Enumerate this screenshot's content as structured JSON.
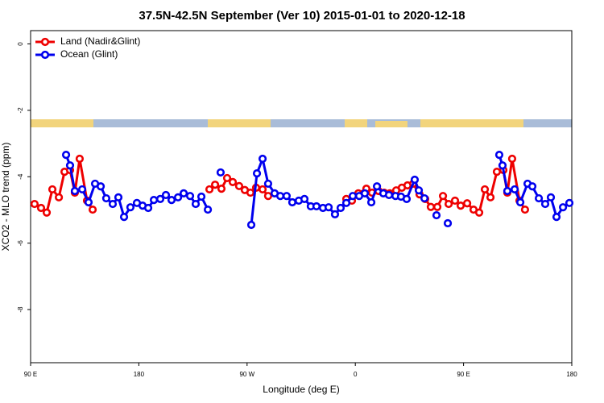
{
  "chart_data": {
    "type": "line",
    "title": "37.5N-42.5N September (Ver 10)   2015-01-01 to 2020-12-18",
    "xlabel": "Longitude (deg E)",
    "ylabel": "XCO2 - MLO trend (ppm)",
    "xlim": [
      90,
      540
    ],
    "ylim": [
      -9.6,
      0.4
    ],
    "xticks": [
      {
        "value": 90,
        "label": "90 E"
      },
      180,
      {
        "value": 270,
        "label": "90 W"
      },
      {
        "value": 360,
        "label": "0"
      },
      {
        "value": 450,
        "label": "90 E"
      },
      {
        "value": 540,
        "label": "180"
      }
    ],
    "yticks": [
      0,
      -2,
      -4,
      -6,
      -8
    ],
    "legend": "top-left",
    "series": [
      {
        "name": "Land (Nadir&Glint)",
        "color": "#ee0000",
        "x": [
          93.3,
          98.7,
          103.4,
          108.1,
          113.5,
          118.2,
          122.8,
          126.8,
          130.8,
          136.9,
          141.6,
          null,
          238.7,
          243.4,
          248.7,
          253.4,
          258.1,
          263.4,
          268.1,
          272.8,
          277.5,
          282.9,
          287.5,
          null,
          352.5,
          357.2,
          362.5,
          369.2,
          373.9,
          379.3,
          384,
          388.7,
          394,
          398.7,
          403.4,
          408.1,
          413.4,
          418.1,
          422.8,
          428.2,
          432.9,
          437.6,
          442.9,
          447.6,
          453,
          458.3,
          463,
          467.7,
          472.4,
          477.7,
          483.1,
          486.4,
          490.4,
          496.5,
          501.1
        ],
        "values": [
          -4.82,
          -4.94,
          -5.08,
          -4.38,
          -4.62,
          -3.85,
          -3.8,
          -4.48,
          -3.46,
          -4.72,
          -4.99,
          null,
          -4.38,
          -4.24,
          -4.36,
          -4.04,
          -4.16,
          -4.28,
          -4.4,
          -4.48,
          -4.33,
          -4.38,
          -4.58,
          null,
          -4.67,
          -4.72,
          -4.5,
          -4.36,
          -4.48,
          -4.43,
          -4.48,
          -4.5,
          -4.41,
          -4.33,
          -4.26,
          -4.21,
          -4.53,
          -4.67,
          -4.91,
          -4.91,
          -4.58,
          -4.82,
          -4.72,
          -4.87,
          -4.8,
          -4.99,
          -5.08,
          -4.38,
          -4.62,
          -3.85,
          -3.8,
          -4.48,
          -3.46,
          -4.72,
          -4.99
        ]
      },
      {
        "name": "Ocean (Glint)",
        "color": "#0000ee",
        "x": [
          119.5,
          122.8,
          126.8,
          132.9,
          138.2,
          143.6,
          148.3,
          152.9,
          158.3,
          163,
          167.7,
          173,
          178.4,
          183.1,
          187.8,
          192.5,
          197.8,
          202.5,
          207.2,
          212.6,
          217.3,
          222.6,
          227.3,
          232,
          237.4,
          null,
          248,
          null,
          273.5,
          278.2,
          282.9,
          287.5,
          292.9,
          297.6,
          302.9,
          307.6,
          313,
          317.7,
          323,
          327.7,
          333.1,
          337.8,
          343.1,
          347.8,
          352.5,
          357.9,
          363.2,
          367.9,
          373.3,
          378,
          383.3,
          388,
          393.4,
          398,
          402.7,
          409.4,
          412.8,
          417.5,
          null,
          427.5,
          null,
          436.9,
          null,
          479.7,
          482.4,
          486.4,
          492.5,
          497.2,
          503.2,
          507.2,
          512.6,
          517.9,
          522.6,
          527.3,
          532.7,
          538
        ],
        "values": [
          -3.34,
          -3.66,
          -4.43,
          -4.38,
          -4.77,
          -4.21,
          -4.29,
          -4.65,
          -4.82,
          -4.62,
          -5.21,
          -4.92,
          -4.79,
          -4.87,
          -4.94,
          -4.7,
          -4.67,
          -4.55,
          -4.7,
          -4.62,
          -4.5,
          -4.58,
          -4.82,
          -4.6,
          -4.99,
          null,
          -3.87,
          null,
          -5.45,
          -3.9,
          -3.46,
          -4.21,
          -4.5,
          -4.58,
          -4.58,
          -4.77,
          -4.72,
          -4.67,
          -4.89,
          -4.89,
          -4.94,
          -4.92,
          -5.13,
          -4.94,
          -4.79,
          -4.58,
          -4.58,
          -4.5,
          -4.77,
          -4.29,
          -4.5,
          -4.55,
          -4.58,
          -4.6,
          -4.67,
          -4.09,
          -4.41,
          -4.65,
          null,
          -5.16,
          null,
          -5.4,
          null,
          -3.34,
          -3.66,
          -4.43,
          -4.38,
          -4.77,
          -4.21,
          -4.29,
          -4.65,
          -4.82,
          -4.62,
          -5.21,
          -4.92,
          -4.79
        ]
      }
    ]
  }
}
